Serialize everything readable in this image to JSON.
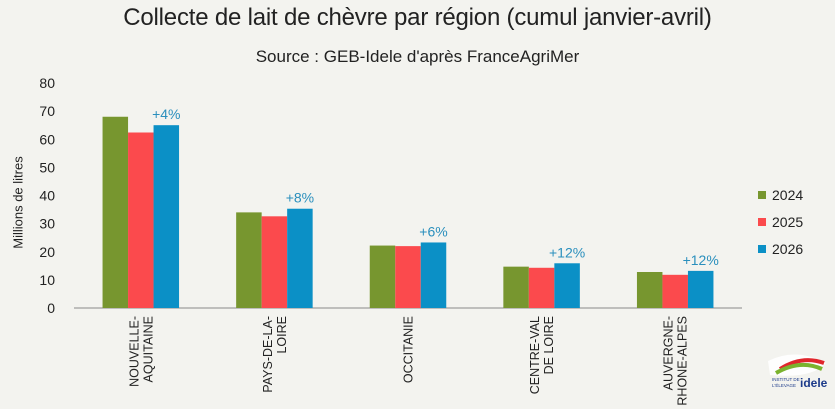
{
  "chart_data": {
    "type": "bar",
    "title": "Collecte de lait de chèvre par région (cumul janvier-avril)",
    "subtitle": "Source : GEB-Idele d'après FranceAgriMer",
    "ylabel": "Millions de litres",
    "xlabel": "",
    "ylim": [
      0,
      80
    ],
    "yticks": [
      0,
      10,
      20,
      30,
      40,
      50,
      60,
      70,
      80
    ],
    "grid": false,
    "legend_position": "right",
    "categories": [
      [
        "NOUVELLE-",
        "AQUITAINE"
      ],
      [
        "PAYS-DE-LA-",
        "LOIRE"
      ],
      [
        "OCCITANIE"
      ],
      [
        "CENTRE-VAL",
        "DE LOIRE"
      ],
      [
        "AUVERGNE-",
        "RHONE-ALPES"
      ]
    ],
    "series": [
      {
        "name": "2024",
        "color": "#77962f",
        "values": [
          68,
          34,
          22.2,
          14.7,
          12.8
        ]
      },
      {
        "name": "2025",
        "color": "#fb4a4d",
        "values": [
          62.4,
          32.6,
          22,
          14.3,
          11.8
        ]
      },
      {
        "name": "2026",
        "color": "#0b90c6",
        "values": [
          65,
          35.3,
          23.3,
          15.9,
          13.2
        ]
      }
    ],
    "annotations": [
      "+4%",
      "+8%",
      "+6%",
      "+12%",
      "+12%"
    ],
    "annotation_color": "#2a8fbd"
  },
  "logo": {
    "line1": "INSTITUT DE",
    "line2": "L'ÉLEVAGE",
    "brand": "idele"
  }
}
